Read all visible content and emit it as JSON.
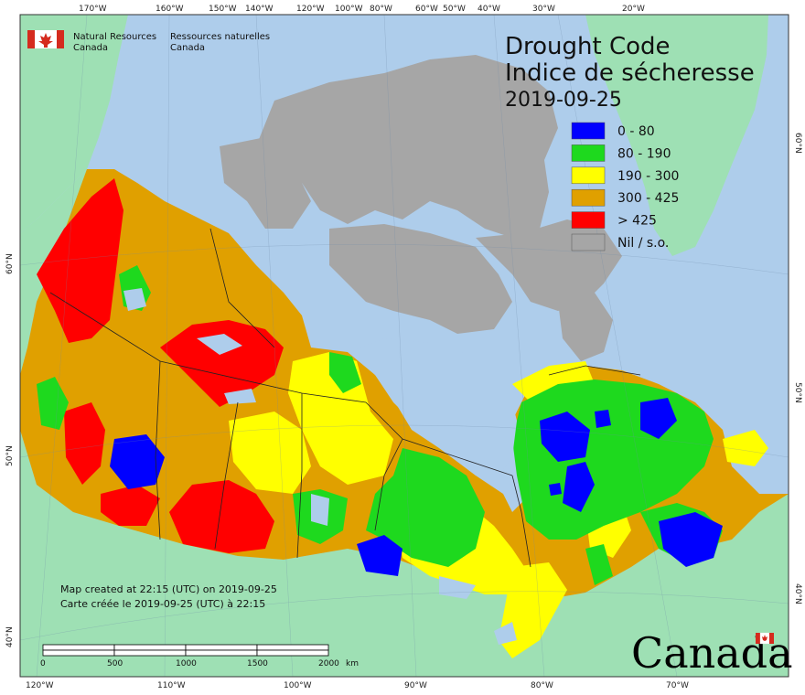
{
  "title": {
    "line1": "Drought Code",
    "line2": "Indice de sécheresse",
    "date": "2019-09-25"
  },
  "agency": {
    "en_line1": "Natural Resources",
    "en_line2": "Canada",
    "fr_line1": "Ressources naturelles",
    "fr_line2": "Canada"
  },
  "legend": [
    {
      "label": "0 - 80",
      "color": "#0000ff"
    },
    {
      "label": "80 - 190",
      "color": "#1ed91e"
    },
    {
      "label": "190 - 300",
      "color": "#ffff00"
    },
    {
      "label": "300 - 425",
      "color": "#e0a000"
    },
    {
      "label": "> 425",
      "color": "#ff0000"
    },
    {
      "label": "Nil / s.o.",
      "color": "#a6a6a6"
    }
  ],
  "top_ticks": [
    "170°W",
    "160°W",
    "150°W",
    "140°W",
    "120°W",
    "100°W",
    "80°W",
    "60°W",
    "50°W",
    "40°W",
    "30°W",
    "20°W"
  ],
  "bottom_ticks": [
    "120°W",
    "110°W",
    "100°W",
    "90°W",
    "80°W",
    "70°W"
  ],
  "left_ticks": [
    "60°N",
    "50°N",
    "40°N"
  ],
  "right_ticks": [
    "60°N",
    "50°N",
    "40°N"
  ],
  "credits": {
    "line1": "Map created at 22:15 (UTC) on 2019-09-25",
    "line2": "Carte créée le 2019-09-25 (UTC) à 22:15"
  },
  "scale": {
    "labels": [
      "0",
      "500",
      "1000",
      "1500",
      "2000"
    ],
    "unit": "km"
  },
  "wordmark": "Canada",
  "colors": {
    "ocean": "#aecdeb",
    "foreign_land": "#9ee0b4",
    "nil": "#a6a6a6",
    "frame": "#333333"
  }
}
